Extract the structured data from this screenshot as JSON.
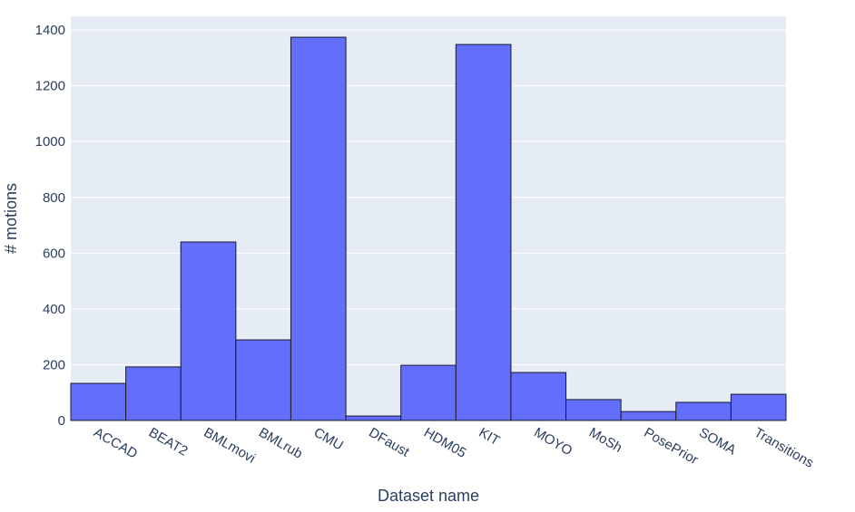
{
  "chart_data": {
    "type": "bar",
    "x_label": "Dataset name",
    "y_label": "# motions",
    "categories": [
      "ACCAD",
      "BEAT2",
      "BMLmovi",
      "BMLrub",
      "CMU",
      "DFaust",
      "HDM05",
      "KIT",
      "MOYO",
      "MoSh",
      "PosePrior",
      "SOMA",
      "Transitions"
    ],
    "values": [
      133,
      192,
      640,
      289,
      1374,
      16,
      198,
      1348,
      172,
      75,
      32,
      65,
      94
    ],
    "color": "#636efa",
    "ylim": [
      0,
      1449
    ],
    "yticks": [
      0,
      200,
      400,
      600,
      800,
      1000,
      1200,
      1400
    ],
    "grid": true
  }
}
